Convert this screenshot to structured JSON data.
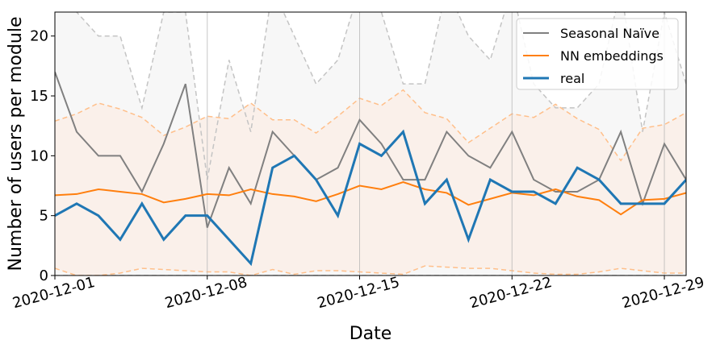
{
  "chart_data": {
    "type": "line",
    "xlabel": "Date",
    "ylabel": "Number of users per module",
    "ylim": [
      0,
      22
    ],
    "yticks": [
      0,
      5,
      10,
      15,
      20
    ],
    "x_start": "2020-12-01",
    "xticks": [
      "2020-12-01",
      "2020-12-08",
      "2020-12-15",
      "2020-12-22",
      "2020-12-29"
    ],
    "x": [
      "2020-12-01",
      "2020-12-02",
      "2020-12-03",
      "2020-12-04",
      "2020-12-05",
      "2020-12-06",
      "2020-12-07",
      "2020-12-08",
      "2020-12-09",
      "2020-12-10",
      "2020-12-11",
      "2020-12-12",
      "2020-12-13",
      "2020-12-14",
      "2020-12-15",
      "2020-12-16",
      "2020-12-17",
      "2020-12-18",
      "2020-12-19",
      "2020-12-20",
      "2020-12-21",
      "2020-12-22",
      "2020-12-23",
      "2020-12-24",
      "2020-12-25",
      "2020-12-26",
      "2020-12-27",
      "2020-12-28",
      "2020-12-29",
      "2020-12-30"
    ],
    "legend_position": "top-right",
    "grid": "vertical lines at x ticks",
    "series": [
      {
        "name": "Seasonal Naïve",
        "color": "#808080",
        "values": [
          17,
          12,
          10,
          10,
          7,
          11,
          16,
          4,
          9,
          6,
          12,
          10,
          8,
          9,
          13,
          11,
          8,
          8,
          12,
          10,
          9,
          12,
          8,
          7,
          7,
          8,
          12,
          6,
          11,
          8
        ],
        "band_upper": [
          25,
          22,
          20,
          20,
          14,
          22,
          22,
          8,
          18,
          12,
          24,
          20,
          16,
          18,
          24,
          22,
          16,
          16,
          24,
          20,
          18,
          24,
          16,
          14,
          14,
          16,
          24,
          12,
          22,
          16
        ],
        "band_lower": [
          0,
          0,
          0,
          0,
          0,
          0,
          0,
          0,
          0,
          0,
          0,
          0,
          0,
          0,
          0,
          0,
          0,
          0,
          0,
          0,
          0,
          0,
          0,
          0,
          0,
          0,
          0,
          0,
          0,
          0
        ],
        "band_fill": "#f7f7f7"
      },
      {
        "name": "NN embeddings",
        "color": "#ff7f0e",
        "values": [
          6.7,
          6.8,
          7.2,
          7.0,
          6.8,
          6.1,
          6.4,
          6.8,
          6.7,
          7.2,
          6.8,
          6.6,
          6.2,
          6.8,
          7.5,
          7.2,
          7.8,
          7.2,
          6.9,
          5.9,
          6.4,
          6.9,
          6.7,
          7.2,
          6.6,
          6.3,
          5.1,
          6.3,
          6.4,
          6.9
        ],
        "band_upper": [
          12.9,
          13.5,
          14.4,
          13.9,
          13.2,
          11.7,
          12.4,
          13.3,
          13.1,
          14.4,
          13.0,
          13.0,
          11.9,
          13.3,
          14.8,
          14.2,
          15.5,
          13.6,
          13.1,
          11.1,
          12.3,
          13.5,
          13.2,
          14.3,
          13.1,
          12.2,
          9.6,
          12.3,
          12.6,
          13.6
        ],
        "band_lower": [
          0.6,
          0.0,
          0.0,
          0.2,
          0.6,
          0.5,
          0.4,
          0.3,
          0.3,
          0.0,
          0.5,
          0.1,
          0.4,
          0.4,
          0.3,
          0.2,
          0.1,
          0.8,
          0.7,
          0.6,
          0.6,
          0.4,
          0.2,
          0.1,
          0.1,
          0.3,
          0.6,
          0.4,
          0.2,
          0.2
        ],
        "band_fill": "#faf0ea"
      },
      {
        "name": "real",
        "color": "#1f77b4",
        "values": [
          5,
          6,
          5,
          3,
          6,
          3,
          5,
          5,
          3,
          1,
          9,
          10,
          8,
          5,
          11,
          10,
          12,
          6,
          8,
          3,
          8,
          7,
          7,
          6,
          9,
          8,
          6,
          6,
          6,
          8
        ]
      }
    ]
  }
}
